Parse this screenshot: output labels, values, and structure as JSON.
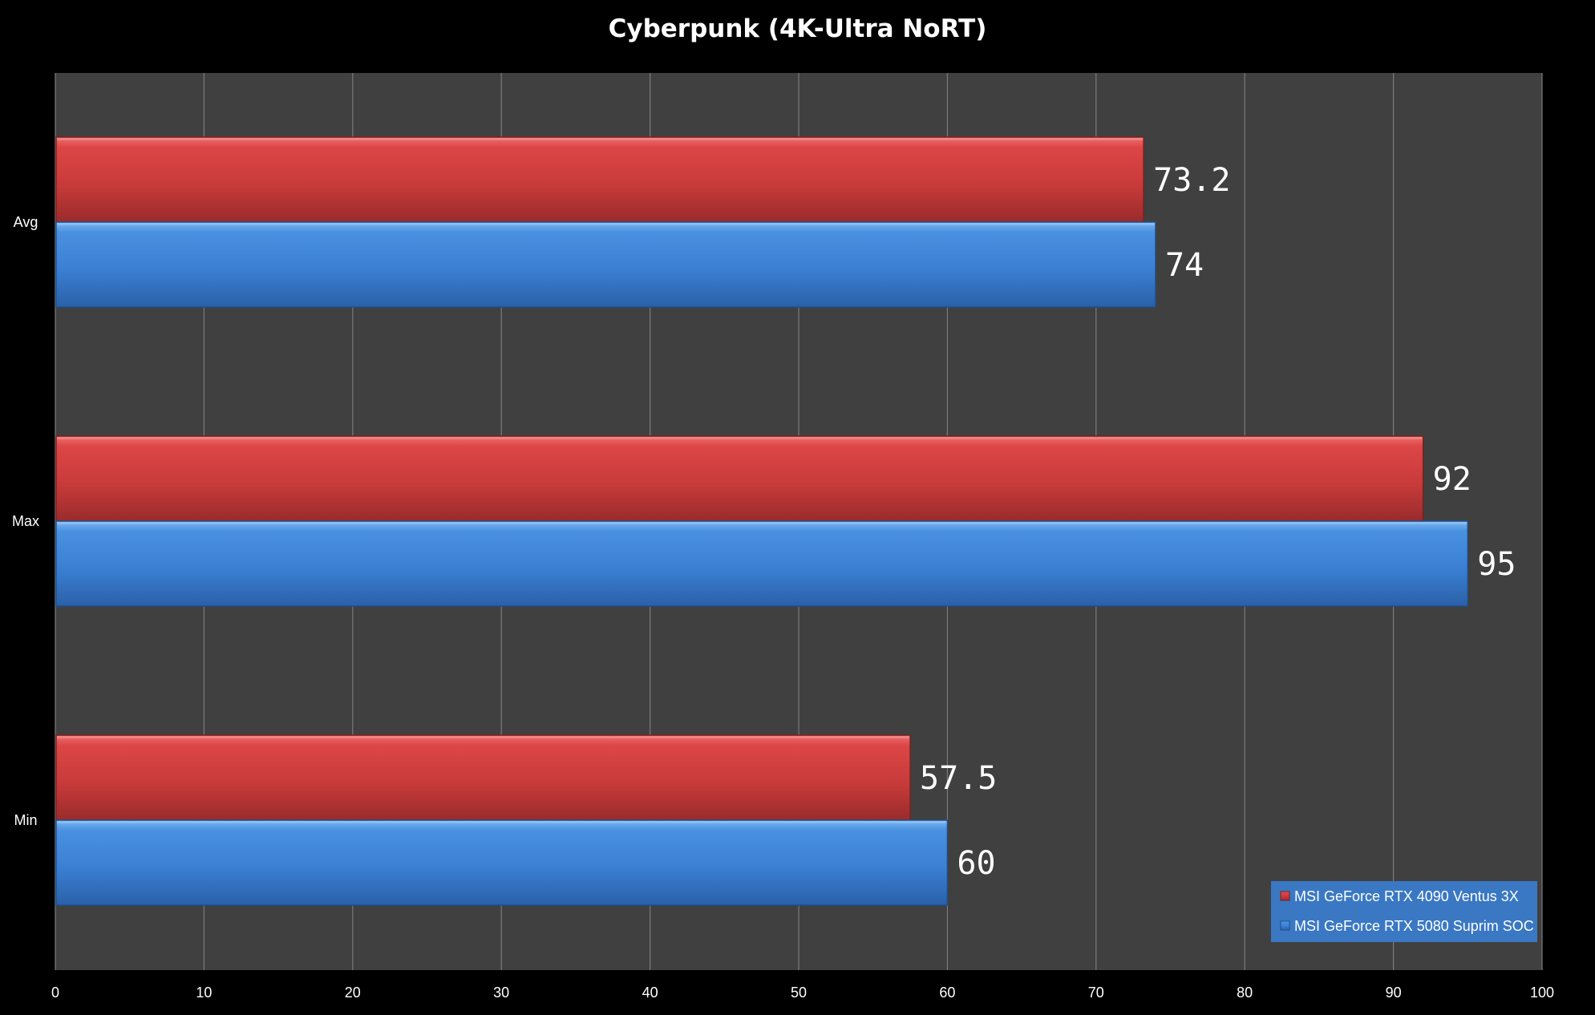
{
  "chart_data": {
    "type": "bar",
    "orientation": "horizontal",
    "title": "Cyberpunk (4K-Ultra NoRT)",
    "xlabel": "",
    "ylabel": "",
    "categories": [
      "Avg",
      "Max",
      "Min"
    ],
    "series": [
      {
        "name": "MSI GeForce RTX 4090 Ventus 3X",
        "color": "#d33f3f",
        "values": [
          73.2,
          92,
          57.5
        ]
      },
      {
        "name": "MSI GeForce RTX 5080 Suprim SOC",
        "color": "#3d7fd4",
        "values": [
          74,
          95,
          60
        ]
      }
    ],
    "xlim": [
      0,
      100
    ],
    "ticks": [
      0,
      10,
      20,
      30,
      40,
      50,
      60,
      70,
      80,
      90,
      100
    ],
    "grid": true,
    "legend_position": "bottom-right",
    "colors": {
      "background": "#000000",
      "plot_area": "#404040",
      "gridline": "#7a7a7a",
      "legend_background": "#3a78c4"
    }
  }
}
